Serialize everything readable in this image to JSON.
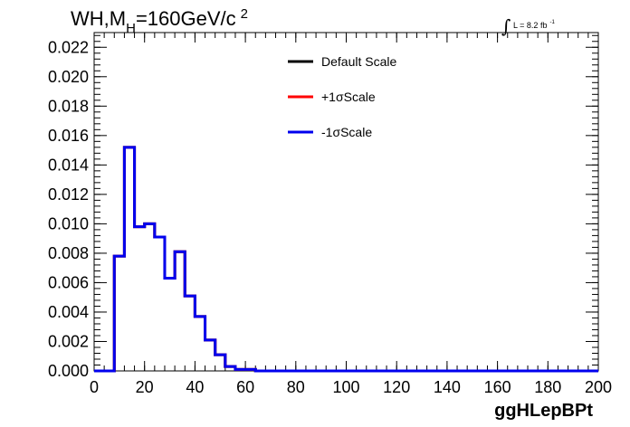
{
  "title_parts": {
    "main": "WH,M",
    "sub": "H",
    "rest": "=160GeV/c",
    "sup": "2"
  },
  "lumi": {
    "integral": "∫",
    "text": "L = 8.2 fb",
    "sup": "-1"
  },
  "chart_data": {
    "type": "line",
    "xlabel": "ggHLepBPt",
    "ylabel": "",
    "xlim": [
      0,
      200
    ],
    "ylim": [
      0,
      0.023
    ],
    "x_ticks": [
      "0",
      "20",
      "40",
      "60",
      "80",
      "100",
      "120",
      "140",
      "160",
      "180",
      "200"
    ],
    "y_ticks": [
      "0.000",
      "0.002",
      "0.004",
      "0.006",
      "0.008",
      "0.010",
      "0.012",
      "0.014",
      "0.016",
      "0.018",
      "0.020",
      "0.022"
    ],
    "bin_width": 4,
    "legend_position": "top-right",
    "series": [
      {
        "name": "Default Scale",
        "color": "#000000",
        "values": [
          0,
          0,
          0.0078,
          0.0152,
          0.0098,
          0.01,
          0.0091,
          0.0063,
          0.0081,
          0.0051,
          0.0037,
          0.0021,
          0.0011,
          0.0003,
          0.0001,
          0.0001,
          0,
          0,
          0,
          0,
          0,
          0,
          0,
          0,
          0,
          0,
          0,
          0,
          0,
          0,
          0,
          0,
          0,
          0,
          0,
          0,
          0,
          0,
          0,
          0,
          0,
          0,
          0,
          0,
          0,
          0,
          0,
          0,
          0,
          0
        ]
      },
      {
        "name": "+1σScale",
        "color": "#ff0000",
        "values": [
          0,
          0,
          0.0078,
          0.0152,
          0.0098,
          0.01,
          0.0091,
          0.0063,
          0.0081,
          0.0051,
          0.0037,
          0.0021,
          0.0011,
          0.0003,
          0.0001,
          0.0001,
          0,
          0,
          0,
          0,
          0,
          0,
          0,
          0,
          0,
          0,
          0,
          0,
          0,
          0,
          0,
          0,
          0,
          0,
          0,
          0,
          0,
          0,
          0,
          0,
          0,
          0,
          0,
          0,
          0,
          0,
          0,
          0,
          0,
          0
        ]
      },
      {
        "name": "-1σScale",
        "color": "#0000ee",
        "values": [
          0,
          0,
          0.0078,
          0.0152,
          0.0098,
          0.01,
          0.0091,
          0.0063,
          0.0081,
          0.0051,
          0.0037,
          0.0021,
          0.0011,
          0.0003,
          0.0001,
          0.0001,
          0,
          0,
          0,
          0,
          0,
          0,
          0,
          0,
          0,
          0,
          0,
          0,
          0,
          0,
          0,
          0,
          0,
          0,
          0,
          0,
          0,
          0,
          0,
          0,
          0,
          0,
          0,
          0,
          0,
          0,
          0,
          0,
          0,
          0
        ]
      }
    ]
  }
}
